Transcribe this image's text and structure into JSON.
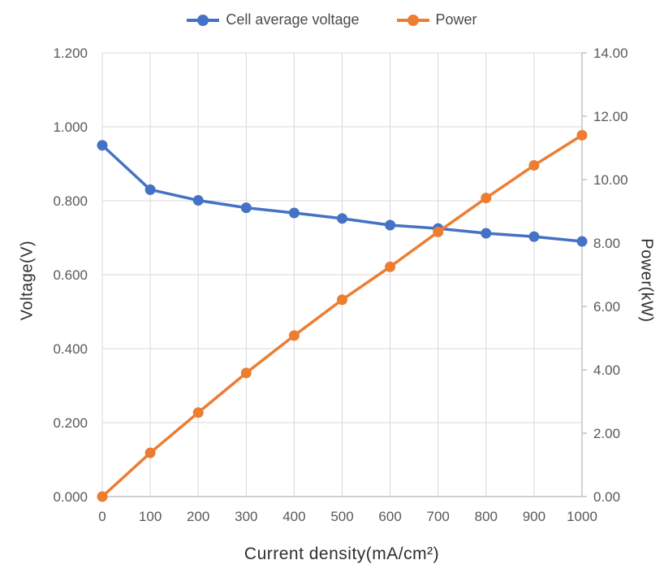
{
  "chart_data": {
    "type": "line",
    "title": "",
    "xlabel": "Current density(mA/cm²)",
    "ylabel_left": "Voltage(V)",
    "ylabel_right": "Power(kW)",
    "legend_position": "top",
    "grid": true,
    "x": [
      0,
      100,
      200,
      300,
      400,
      500,
      600,
      700,
      800,
      900,
      1000
    ],
    "series": [
      {
        "name": "Cell average voltage",
        "axis": "left",
        "color": "#4472C4",
        "marker": "circle",
        "values": [
          0.95,
          0.83,
          0.801,
          0.781,
          0.767,
          0.752,
          0.734,
          0.725,
          0.712,
          0.703,
          0.69
        ]
      },
      {
        "name": "Power",
        "axis": "right",
        "color": "#ED7D31",
        "marker": "circle",
        "values": [
          0.0,
          1.38,
          2.65,
          3.9,
          5.08,
          6.21,
          7.25,
          8.35,
          9.42,
          10.45,
          11.4
        ]
      }
    ],
    "x_axis": {
      "min": 0,
      "max": 1000,
      "tick_values": [
        0,
        100,
        200,
        300,
        400,
        500,
        600,
        700,
        800,
        900,
        1000
      ],
      "tick_labels": [
        "0",
        "100",
        "200",
        "300",
        "400",
        "500",
        "600",
        "700",
        "800",
        "900",
        "1000"
      ]
    },
    "y_left": {
      "min": 0,
      "max": 1.2,
      "tick_values": [
        0,
        0.2,
        0.4,
        0.6,
        0.8,
        1.0,
        1.2
      ],
      "tick_labels": [
        "0.000",
        "0.200",
        "0.400",
        "0.600",
        "0.800",
        "1.000",
        "1.200"
      ]
    },
    "y_right": {
      "min": 0,
      "max": 14,
      "tick_values": [
        0,
        2,
        4,
        6,
        8,
        10,
        12,
        14
      ],
      "tick_labels": [
        "0.00",
        "2.00",
        "4.00",
        "6.00",
        "8.00",
        "10.00",
        "12.00",
        "14.00"
      ]
    },
    "colors": {
      "gridline": "#D9D9D9",
      "axis_line": "#BFBFBF",
      "tick_text": "#595959",
      "title_text": "#2E2E2E",
      "legend_text": "#4A4A4A",
      "background": "#FFFFFF"
    }
  }
}
